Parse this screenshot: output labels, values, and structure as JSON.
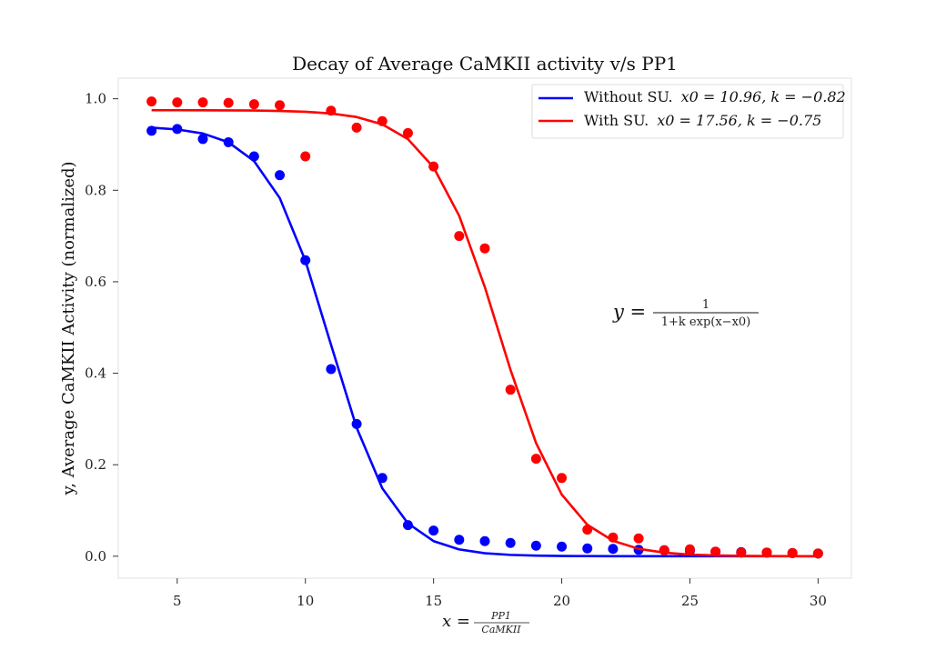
{
  "chart_data": {
    "type": "scatter",
    "title": "Decay of Average CaMKII activity v/s PP1",
    "xlabel": {
      "lhs": "x =",
      "frac_num": "PP1",
      "frac_den": "CaMKII"
    },
    "ylabel": "y, Average CaMKII Activity (normalized)",
    "xlim": [
      2.7,
      31.3
    ],
    "ylim": [
      -0.048,
      1.045
    ],
    "x_ticks": [
      5,
      10,
      15,
      20,
      25,
      30
    ],
    "y_ticks": [
      0.0,
      0.2,
      0.4,
      0.6,
      0.8,
      1.0
    ],
    "x_tick_labels": [
      "5",
      "10",
      "15",
      "20",
      "25",
      "30"
    ],
    "y_tick_labels": [
      "0.0",
      "0.2",
      "0.4",
      "0.6",
      "0.8",
      "1.0"
    ],
    "grid": false,
    "legend_position": "top-right",
    "annotation": {
      "lhs": "y =",
      "num": "1",
      "den": "1+k exp(x−x0)"
    },
    "series": [
      {
        "name": "Without SU. x0 = 10.96, k = −0.82",
        "legend_prefix": "Without SU.",
        "legend_params": "x0 = 10.96, k = −0.82",
        "color": "#0000ff",
        "fit": {
          "x0": 10.96,
          "k": 0.82,
          "top": 0.94
        },
        "x": [
          4,
          5,
          6,
          7,
          8,
          9,
          10,
          11,
          12,
          13,
          14,
          15,
          16,
          17,
          18,
          19,
          20,
          21,
          22,
          23,
          24,
          25,
          26,
          27,
          28,
          29,
          30
        ],
        "y": [
          0.93,
          0.934,
          0.912,
          0.905,
          0.874,
          0.833,
          0.647,
          0.409,
          0.289,
          0.171,
          0.068,
          0.056,
          0.036,
          0.033,
          0.029,
          0.023,
          0.021,
          0.017,
          0.016,
          0.014,
          0.013,
          0.012,
          0.01,
          0.009,
          0.008,
          0.007,
          0.006
        ]
      },
      {
        "name": "With SU. x0 = 17.56, k = −0.75",
        "legend_prefix": "With SU.",
        "legend_params": "x0 = 17.56, k = −0.75",
        "color": "#ff0000",
        "fit": {
          "x0": 17.56,
          "k": 0.75,
          "top": 0.975
        },
        "x": [
          4,
          5,
          6,
          7,
          8,
          9,
          10,
          11,
          12,
          13,
          14,
          15,
          16,
          17,
          18,
          19,
          20,
          21,
          22,
          23,
          24,
          25,
          26,
          27,
          28,
          29,
          30
        ],
        "y": [
          0.994,
          0.992,
          0.992,
          0.991,
          0.988,
          0.986,
          0.874,
          0.974,
          0.937,
          0.951,
          0.925,
          0.852,
          0.7,
          0.673,
          0.364,
          0.213,
          0.171,
          0.058,
          0.041,
          0.039,
          0.013,
          0.015,
          0.01,
          0.008,
          0.008,
          0.007,
          0.006
        ]
      }
    ]
  }
}
